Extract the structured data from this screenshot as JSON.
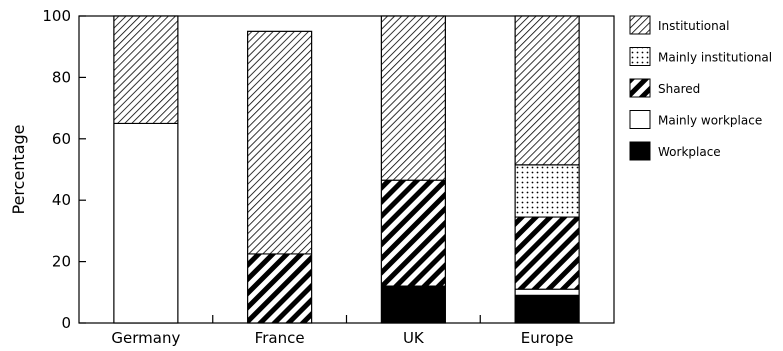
{
  "chart_data": {
    "type": "bar",
    "stacked": true,
    "categories": [
      "Germany",
      "France",
      "UK",
      "Europe"
    ],
    "ylabel": "Percentage",
    "ylim": [
      0,
      100
    ],
    "yticks": [
      0,
      20,
      40,
      60,
      80,
      100
    ],
    "legend_position": "right",
    "series": [
      {
        "name": "Workplace",
        "pattern": "solid-black",
        "values": [
          0,
          0,
          12,
          9
        ]
      },
      {
        "name": "Mainly workplace",
        "pattern": "white",
        "values": [
          65,
          0,
          0,
          2
        ]
      },
      {
        "name": "Shared",
        "pattern": "wide-diagonal",
        "values": [
          0,
          22.5,
          34.5,
          23.5
        ]
      },
      {
        "name": "Mainly institutional",
        "pattern": "dots",
        "values": [
          0,
          0,
          0,
          17
        ]
      },
      {
        "name": "Institutional",
        "pattern": "fine-diagonal",
        "values": [
          35,
          72.5,
          53.5,
          48.5
        ]
      }
    ],
    "legend_order": [
      "Institutional",
      "Mainly institutional",
      "Shared",
      "Mainly workplace",
      "Workplace"
    ]
  }
}
